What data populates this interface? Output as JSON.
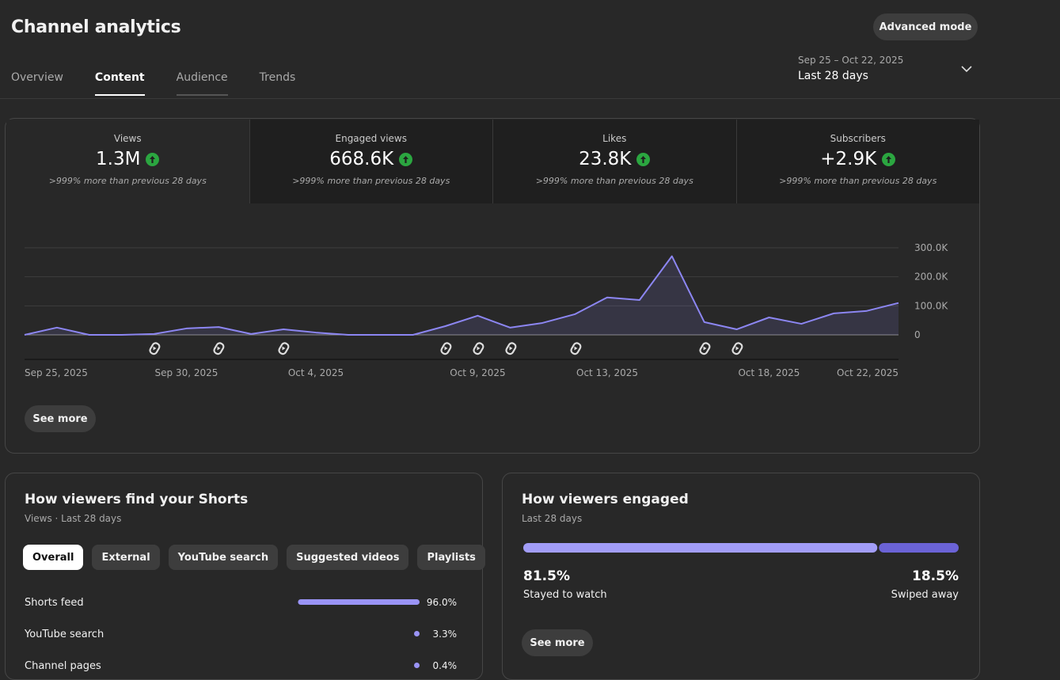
{
  "header": {
    "title": "Channel analytics",
    "advanced_button": "Advanced mode",
    "tabs": [
      "Overview",
      "Content",
      "Audience",
      "Trends"
    ],
    "date_range": "Sep 25 – Oct 22, 2025",
    "period": "Last 28 days"
  },
  "metrics": [
    {
      "label": "Views",
      "value": "1.3M",
      "change": ">999% more than previous 28 days"
    },
    {
      "label": "Engaged views",
      "value": "668.6K",
      "change": ">999% more than previous 28 days"
    },
    {
      "label": "Likes",
      "value": "23.8K",
      "change": ">999% more than previous 28 days"
    },
    {
      "label": "Subscribers",
      "value": "+2.9K",
      "change": ">999% more than previous 28 days"
    }
  ],
  "see_more": "See more",
  "chart_data": [
    {
      "type": "line",
      "color": "#8c86f2",
      "categories": [
        "Sep 25, 2025",
        null,
        null,
        null,
        null,
        "Sep 30, 2025",
        null,
        null,
        null,
        "Oct 4, 2025",
        null,
        null,
        null,
        null,
        "Oct 9, 2025",
        null,
        null,
        null,
        "Oct 13, 2025",
        null,
        null,
        null,
        null,
        "Oct 18, 2025",
        null,
        null,
        null,
        "Oct 22, 2025"
      ],
      "values": [
        0,
        25000,
        0,
        0,
        3000,
        22000,
        27000,
        3000,
        19000,
        8000,
        0,
        0,
        0,
        30000,
        66000,
        25000,
        41000,
        71000,
        129000,
        120000,
        271000,
        44000,
        19000,
        60000,
        38000,
        74000,
        82000,
        110000
      ],
      "ylim": [
        0,
        300000
      ],
      "yticks": [
        0,
        {
          "value": 100000,
          "label": "100.0K"
        },
        {
          "value": 200000,
          "label": "200.0K"
        },
        {
          "value": 300000,
          "label": "300.0K"
        }
      ],
      "grid": true
    },
    {
      "type": "bar",
      "title": "How viewers find your Shorts",
      "subtitle": "Views · Last 28 days",
      "filters": [
        "Overall",
        "External",
        "YouTube search",
        "Suggested videos",
        "Playlists"
      ],
      "categories": [
        "Shorts feed",
        "YouTube search",
        "Channel pages"
      ],
      "values": [
        96.0,
        3.3,
        0.4
      ],
      "value_labels": [
        "96.0%",
        "3.3%",
        "0.4%"
      ],
      "xlim": [
        0,
        100
      ],
      "color": "#9a94f6"
    },
    {
      "type": "stacked-bar",
      "title": "How viewers engaged",
      "subtitle": "Last 28 days",
      "categories": [
        "Stayed to watch",
        "Swiped away"
      ],
      "values": [
        81.5,
        18.5
      ],
      "value_labels": [
        "81.5%",
        "18.5%"
      ],
      "xlim": [
        0,
        100
      ],
      "colors": [
        "#a29df8",
        "#6b63d6"
      ]
    }
  ]
}
